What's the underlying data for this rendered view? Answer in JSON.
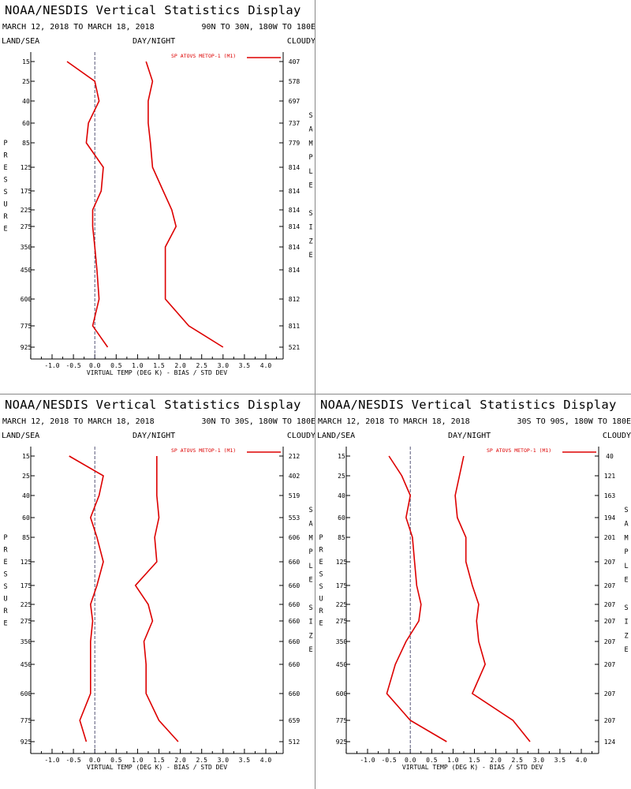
{
  "header": {
    "title": "NOAA/NESDIS Vertical Statistics Display",
    "dates": "MARCH 12, 2018 TO MARCH 18, 2018",
    "land_sea": "LAND/SEA",
    "day_night": "DAY/NIGHT",
    "cloudy": "CLOUDY",
    "pressure_label": "PRESSURE",
    "sample_label": "SAMPLE SIZE",
    "xlabel": "VIRTUAL TEMP (DEG K) - BIAS / STD DEV",
    "legend": "SP ATOVS METOP-1 (M1)"
  },
  "colors": {
    "line": "#dd0000",
    "axis": "#000000",
    "zero_line": "#555577"
  },
  "axis": {
    "x_ticks": [
      "-1.0",
      "-0.5",
      "0.0",
      "0.5",
      "1.0",
      "1.5",
      "2.0",
      "2.5",
      "3.0",
      "3.5",
      "4.0"
    ],
    "pressure_levels": [
      "15",
      "25",
      "40",
      "60",
      "85",
      "125",
      "175",
      "225",
      "275",
      "350",
      "450",
      "600",
      "775",
      "925"
    ]
  },
  "chart_data": [
    {
      "type": "line",
      "region": "90N TO 30N, 180W TO 180E",
      "xlim": [
        -1.5,
        4.5
      ],
      "y_pressure_levels": [
        15,
        25,
        40,
        60,
        85,
        125,
        175,
        225,
        275,
        350,
        450,
        600,
        775,
        925
      ],
      "y_reversed": true,
      "series": [
        {
          "role": "bias",
          "values": [
            -0.65,
            0.0,
            0.1,
            -0.15,
            -0.2,
            0.2,
            0.15,
            -0.05,
            -0.05,
            0.0,
            0.05,
            0.1,
            -0.05,
            0.3
          ]
        },
        {
          "role": "std_dev",
          "values": [
            1.2,
            1.35,
            1.25,
            1.25,
            1.3,
            1.35,
            1.6,
            1.8,
            1.9,
            1.65,
            1.65,
            1.65,
            2.2,
            3.0
          ]
        }
      ],
      "sample_size": [
        "407",
        "578",
        "697",
        "737",
        "779",
        "814",
        "814",
        "814",
        "814",
        "814",
        "814",
        "812",
        "811",
        "521"
      ]
    },
    {
      "type": "line",
      "region": "30N TO 30S, 180W TO 180E",
      "xlim": [
        -1.5,
        4.5
      ],
      "y_pressure_levels": [
        15,
        25,
        40,
        60,
        85,
        125,
        175,
        225,
        275,
        350,
        450,
        600,
        775,
        925
      ],
      "y_reversed": true,
      "series": [
        {
          "role": "bias",
          "values": [
            -0.6,
            0.2,
            0.1,
            -0.1,
            0.05,
            0.2,
            0.05,
            -0.1,
            -0.05,
            -0.1,
            -0.1,
            -0.1,
            -0.35,
            -0.2
          ]
        },
        {
          "role": "std_dev",
          "values": [
            1.45,
            1.45,
            1.45,
            1.5,
            1.4,
            1.45,
            0.95,
            1.25,
            1.35,
            1.15,
            1.2,
            1.2,
            1.5,
            1.95
          ]
        }
      ],
      "sample_size": [
        "212",
        "402",
        "519",
        "553",
        "606",
        "660",
        "660",
        "660",
        "660",
        "660",
        "660",
        "660",
        "659",
        "512"
      ]
    },
    {
      "type": "line",
      "region": "30S TO 90S, 180W TO 180E",
      "xlim": [
        -1.5,
        4.5
      ],
      "y_pressure_levels": [
        15,
        25,
        40,
        60,
        85,
        125,
        175,
        225,
        275,
        350,
        450,
        600,
        775,
        925
      ],
      "y_reversed": true,
      "series": [
        {
          "role": "bias",
          "values": [
            -0.5,
            -0.2,
            0.0,
            -0.1,
            0.05,
            0.1,
            0.15,
            0.25,
            0.2,
            -0.1,
            -0.35,
            -0.55,
            0.0,
            0.85
          ]
        },
        {
          "role": "std_dev",
          "values": [
            1.25,
            1.15,
            1.05,
            1.1,
            1.3,
            1.3,
            1.45,
            1.6,
            1.55,
            1.6,
            1.75,
            1.45,
            2.4,
            2.8
          ]
        }
      ],
      "sample_size": [
        "40",
        "121",
        "163",
        "194",
        "201",
        "207",
        "207",
        "207",
        "207",
        "207",
        "207",
        "207",
        "207",
        "124"
      ]
    }
  ]
}
